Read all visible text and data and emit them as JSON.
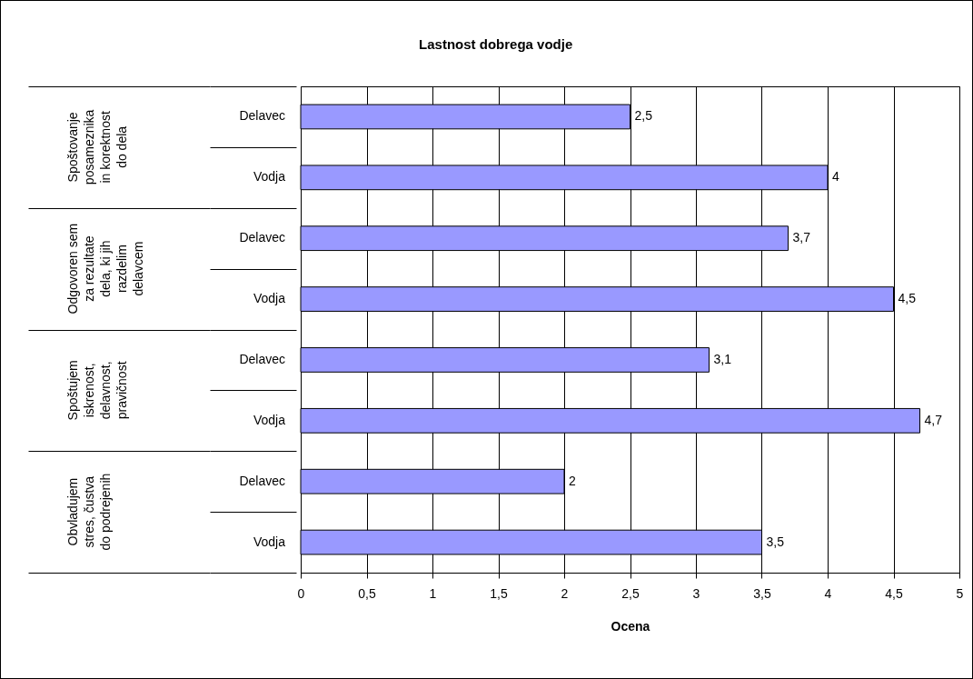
{
  "chart_data": {
    "type": "bar",
    "orientation": "horizontal",
    "title": "Lastnost dobrega vodje",
    "xlabel": "Ocena",
    "categories": [
      "Delavec",
      "Vodja",
      "Delavec",
      "Vodja",
      "Delavec",
      "Vodja",
      "Delavec",
      "Vodja"
    ],
    "values": [
      2.5,
      4,
      3.7,
      4.5,
      3.1,
      4.7,
      2,
      3.5
    ],
    "value_labels": [
      "2,5",
      "4",
      "3,7",
      "4,5",
      "3,1",
      "4,7",
      "2",
      "3,5"
    ],
    "color": "#9999ff",
    "annotations": [
      "Spoštovanje posameznika in korektnost do dela",
      "Odgovoren sem za rezultate dela, ki jih razdelim delavcem",
      "Spoštujem iskrenost, delavnost, pravičnost",
      "Obvladujem stres, čustva do podrejenih"
    ],
    "xlim": [
      0,
      5
    ],
    "xticks": [
      0,
      {
        "value": 0.5,
        "label": "0,5"
      },
      1,
      {
        "value": 1.5,
        "label": "1,5"
      },
      2,
      {
        "value": 2.5,
        "label": "2,5"
      },
      3,
      {
        "value": 3.5,
        "label": "3,5"
      },
      4,
      {
        "value": 4.5,
        "label": "4,5"
      },
      5
    ],
    "grid": "x"
  }
}
